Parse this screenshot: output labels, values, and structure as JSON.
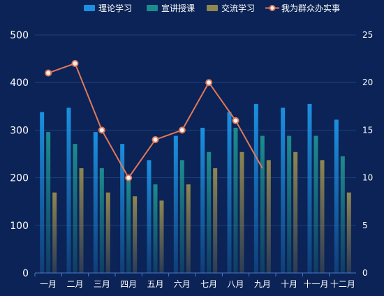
{
  "chart_data": {
    "type": "bar",
    "categories": [
      "一月",
      "二月",
      "三月",
      "四月",
      "五月",
      "六月",
      "七月",
      "八月",
      "九月",
      "十月",
      "十一月",
      "十二月"
    ],
    "series": [
      {
        "name": "理论学习",
        "type": "bar",
        "axis": "left",
        "color": "#1c8fe0",
        "values": [
          338,
          347,
          296,
          271,
          237,
          288,
          305,
          338,
          355,
          347,
          355,
          322
        ]
      },
      {
        "name": "宣讲授课",
        "type": "bar",
        "axis": "left",
        "color": "#1d8c8e",
        "values": [
          296,
          271,
          220,
          200,
          186,
          237,
          254,
          305,
          288,
          288,
          288,
          245
        ]
      },
      {
        "name": "交流学习",
        "type": "bar",
        "axis": "left",
        "color": "#8f8650",
        "values": [
          169,
          220,
          169,
          161,
          152,
          186,
          220,
          254,
          237,
          254,
          237,
          169
        ]
      },
      {
        "name": "我为群众办实事",
        "type": "line",
        "axis": "right",
        "color": "#e0785a",
        "values": [
          21,
          22,
          15,
          10,
          14,
          15,
          20,
          16,
          11,
          null,
          null,
          null
        ]
      }
    ],
    "y_left": {
      "min": 0,
      "max": 500,
      "ticks": [
        0,
        100,
        200,
        300,
        400,
        500
      ]
    },
    "y_right": {
      "min": 0,
      "max": 25,
      "ticks": [
        0,
        5,
        10,
        15,
        20,
        25
      ]
    },
    "grid": true,
    "legend_position": "top-center"
  }
}
